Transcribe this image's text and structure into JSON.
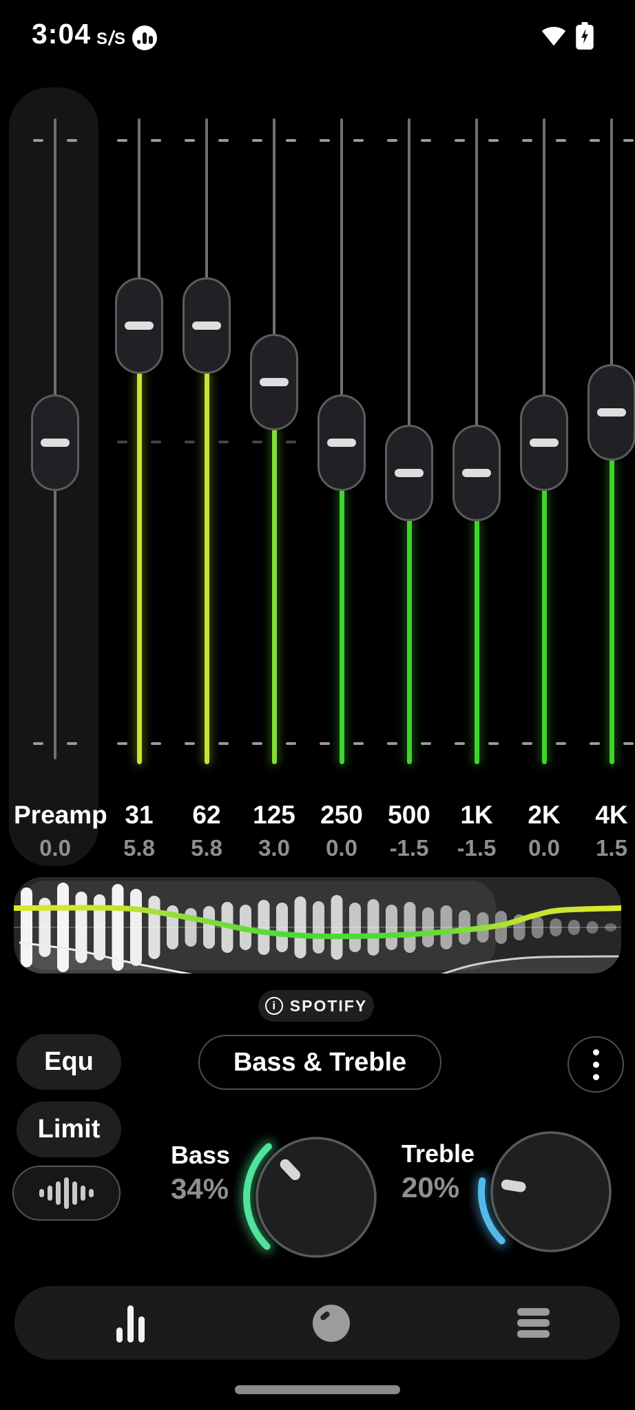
{
  "status_bar": {
    "time": "3:04",
    "notification_icons": [
      "sis-icon",
      "equalizer-app-icon"
    ],
    "right_icons": [
      "wifi",
      "battery-charging"
    ]
  },
  "equalizer": {
    "scale": {
      "max_db": 15,
      "min_db": -15
    },
    "sliders": [
      {
        "id": "preamp",
        "label": "Preamp",
        "value": "0.0",
        "gain": 0.0,
        "color": null
      },
      {
        "id": "31",
        "label": "31",
        "value": "5.8",
        "gain": 5.8,
        "color": "#c4e531"
      },
      {
        "id": "62",
        "label": "62",
        "value": "5.8",
        "gain": 5.8,
        "color": "#c4e531"
      },
      {
        "id": "125",
        "label": "125",
        "value": "3.0",
        "gain": 3.0,
        "color": "#84dd37"
      },
      {
        "id": "250",
        "label": "250",
        "value": "0.0",
        "gain": 0.0,
        "color": "#3fd42c"
      },
      {
        "id": "500",
        "label": "500",
        "value": "-1.5",
        "gain": -1.5,
        "color": "#3fd42c"
      },
      {
        "id": "1K",
        "label": "1K",
        "value": "-1.5",
        "gain": -1.5,
        "color": "#3fd42c"
      },
      {
        "id": "2K",
        "label": "2K",
        "value": "0.0",
        "gain": 0.0,
        "color": "#3fd42c"
      },
      {
        "id": "4K",
        "label": "4K",
        "value": "1.5",
        "gain": 1.5,
        "color": "#3fd42c"
      }
    ]
  },
  "spectrum": {
    "bars": [
      [
        116,
        0.95
      ],
      [
        86,
        0.9
      ],
      [
        130,
        0.95
      ],
      [
        104,
        0.92
      ],
      [
        96,
        0.9
      ],
      [
        126,
        0.95
      ],
      [
        112,
        0.92
      ],
      [
        92,
        0.85
      ],
      [
        64,
        0.8
      ],
      [
        56,
        0.75
      ],
      [
        62,
        0.78
      ],
      [
        74,
        0.8
      ],
      [
        66,
        0.78
      ],
      [
        80,
        0.8
      ],
      [
        72,
        0.78
      ],
      [
        90,
        0.8
      ],
      [
        76,
        0.75
      ],
      [
        94,
        0.78
      ],
      [
        72,
        0.72
      ],
      [
        82,
        0.72
      ],
      [
        66,
        0.68
      ],
      [
        74,
        0.66
      ],
      [
        58,
        0.6
      ],
      [
        64,
        0.58
      ],
      [
        50,
        0.55
      ],
      [
        44,
        0.5
      ],
      [
        48,
        0.48
      ],
      [
        38,
        0.45
      ],
      [
        32,
        0.42
      ],
      [
        26,
        0.4
      ],
      [
        22,
        0.38
      ],
      [
        18,
        0.35
      ],
      [
        12,
        0.3
      ]
    ],
    "eq_curve": [
      [
        0,
        45
      ],
      [
        150,
        45
      ],
      [
        215,
        52
      ],
      [
        280,
        64
      ],
      [
        350,
        78
      ],
      [
        420,
        85
      ],
      [
        490,
        86
      ],
      [
        560,
        84
      ],
      [
        620,
        80
      ],
      [
        680,
        74
      ],
      [
        715,
        68
      ],
      [
        755,
        56
      ],
      [
        795,
        48
      ],
      [
        882,
        45
      ]
    ],
    "eq_curve_gradient": [
      [
        0,
        "#dbe92c"
      ],
      [
        0.16,
        "#c9e532"
      ],
      [
        0.3,
        "#84dd37"
      ],
      [
        0.45,
        "#4ed937"
      ],
      [
        0.6,
        "#4cda37"
      ],
      [
        0.72,
        "#6fdc37"
      ],
      [
        0.84,
        "#c2e332"
      ],
      [
        1,
        "#dcea2b"
      ]
    ],
    "left_rolloff_curve": [
      [
        8,
        95
      ],
      [
        90,
        106
      ],
      [
        160,
        122
      ],
      [
        215,
        133
      ],
      [
        262,
        142
      ]
    ],
    "right_rolloff_curve": [
      [
        618,
        142
      ],
      [
        665,
        128
      ],
      [
        715,
        120
      ],
      [
        770,
        116
      ],
      [
        882,
        115
      ]
    ]
  },
  "source_badge": {
    "label": "SPOTIFY",
    "icon": "info",
    "info_glyph": "i"
  },
  "buttons": {
    "equ": "Equ",
    "limit": "Limit",
    "preset": "Bass & Treble"
  },
  "tone_controls": {
    "bass": {
      "label": "Bass",
      "percent": "34%",
      "value": 34,
      "arc_color": "#4fe39b"
    },
    "treble": {
      "label": "Treble",
      "percent": "20%",
      "value": 20,
      "arc_color": "#54b9ea"
    }
  },
  "bottom_nav": {
    "items": [
      {
        "name": "equalizer-tab",
        "icon": "bar-chart",
        "active": true
      },
      {
        "name": "tone-tab",
        "icon": "knob",
        "active": false
      },
      {
        "name": "menu-tab",
        "icon": "list",
        "active": false
      }
    ]
  }
}
